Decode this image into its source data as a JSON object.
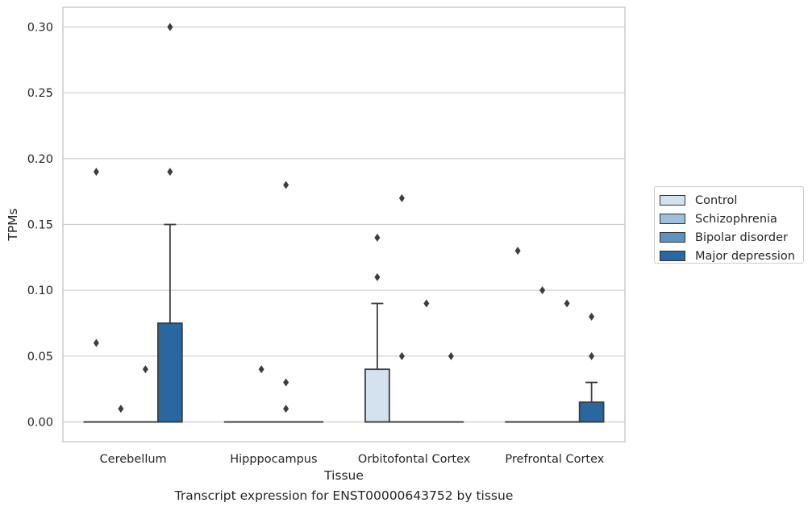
{
  "caption": "Transcript expression for ENST00000643752 by tissue",
  "legend": {
    "items": [
      {
        "label": "Control",
        "color": "#d4e2f0"
      },
      {
        "label": "Schizophrenia",
        "color": "#9cc0da"
      },
      {
        "label": "Bipolar disorder",
        "color": "#5b93c1"
      },
      {
        "label": "Major depression",
        "color": "#2967a1"
      }
    ]
  },
  "chart_data": {
    "type": "box",
    "xlabel": "Tissue",
    "ylabel": "TPMs",
    "ylim": [
      -0.015,
      0.315
    ],
    "yticks": [
      0.0,
      0.05,
      0.1,
      0.15,
      0.2,
      0.25,
      0.3
    ],
    "ytick_labels": [
      "0.00",
      "0.05",
      "0.10",
      "0.15",
      "0.20",
      "0.25",
      "0.30"
    ],
    "grid": true,
    "legend_position": "right",
    "categories": [
      "Cerebellum",
      "Hipppocampus",
      "Orbitofontal Cortex",
      "Prefrontal Cortex"
    ],
    "series": [
      {
        "name": "Control",
        "color": "#d4e2f0",
        "boxes": [
          {
            "q1": 0,
            "median": 0,
            "q3": 0,
            "whislo": 0,
            "whishi": 0,
            "fliers": [
              0.19,
              0.06
            ]
          },
          {
            "q1": 0,
            "median": 0,
            "q3": 0,
            "whislo": 0,
            "whishi": 0,
            "fliers": []
          },
          {
            "q1": 0,
            "median": 0,
            "q3": 0.04,
            "whislo": 0,
            "whishi": 0.09,
            "fliers": [
              0.14,
              0.11
            ]
          },
          {
            "q1": 0,
            "median": 0,
            "q3": 0,
            "whislo": 0,
            "whishi": 0,
            "fliers": [
              0.13
            ]
          }
        ]
      },
      {
        "name": "Schizophrenia",
        "color": "#9cc0da",
        "boxes": [
          {
            "q1": 0,
            "median": 0,
            "q3": 0,
            "whislo": 0,
            "whishi": 0,
            "fliers": [
              0.01
            ]
          },
          {
            "q1": 0,
            "median": 0,
            "q3": 0,
            "whislo": 0,
            "whishi": 0,
            "fliers": [
              0.04
            ]
          },
          {
            "q1": 0,
            "median": 0,
            "q3": 0,
            "whislo": 0,
            "whishi": 0,
            "fliers": [
              0.17,
              0.05
            ]
          },
          {
            "q1": 0,
            "median": 0,
            "q3": 0,
            "whislo": 0,
            "whishi": 0,
            "fliers": [
              0.1
            ]
          }
        ]
      },
      {
        "name": "Bipolar disorder",
        "color": "#5b93c1",
        "boxes": [
          {
            "q1": 0,
            "median": 0,
            "q3": 0,
            "whislo": 0,
            "whishi": 0,
            "fliers": [
              0.04
            ]
          },
          {
            "q1": 0,
            "median": 0,
            "q3": 0,
            "whislo": 0,
            "whishi": 0,
            "fliers": [
              0.18,
              0.03,
              0.01
            ]
          },
          {
            "q1": 0,
            "median": 0,
            "q3": 0,
            "whislo": 0,
            "whishi": 0,
            "fliers": [
              0.09
            ]
          },
          {
            "q1": 0,
            "median": 0,
            "q3": 0,
            "whislo": 0,
            "whishi": 0,
            "fliers": [
              0.09
            ]
          }
        ]
      },
      {
        "name": "Major depression",
        "color": "#2967a1",
        "boxes": [
          {
            "q1": 0,
            "median": 0,
            "q3": 0.075,
            "whislo": 0,
            "whishi": 0.15,
            "fliers": [
              0.3,
              0.19
            ]
          },
          {
            "q1": 0,
            "median": 0,
            "q3": 0,
            "whislo": 0,
            "whishi": 0,
            "fliers": []
          },
          {
            "q1": 0,
            "median": 0,
            "q3": 0,
            "whislo": 0,
            "whishi": 0,
            "fliers": [
              0.05
            ]
          },
          {
            "q1": 0,
            "median": 0,
            "q3": 0.015,
            "whislo": 0,
            "whishi": 0.03,
            "fliers": [
              0.08,
              0.05
            ]
          }
        ]
      }
    ]
  }
}
